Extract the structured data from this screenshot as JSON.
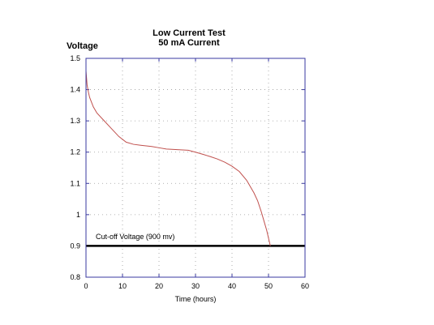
{
  "chart_data": {
    "type": "line",
    "title": "Low Current Test",
    "subtitle": "50 mA Current",
    "xlabel": "Time (hours)",
    "ylabel": "Voltage",
    "xlim": [
      0,
      60
    ],
    "ylim": [
      0.8,
      1.5
    ],
    "x_ticks": [
      "0",
      "10",
      "20",
      "30",
      "40",
      "50",
      "60"
    ],
    "y_ticks": [
      "0.8",
      "0.9",
      "1",
      "1.1",
      "1.2",
      "1.3",
      "1.4",
      "1.5"
    ],
    "grid": true,
    "series": [
      {
        "color": "#c0504d",
        "x": [
          0,
          0.3,
          0.7,
          1,
          2,
          3,
          5,
          7,
          9,
          11,
          13,
          15,
          18,
          20,
          22,
          25,
          28,
          30,
          32,
          34,
          36,
          38,
          40,
          42,
          44,
          45,
          46,
          47,
          48,
          49,
          49.5,
          50,
          50.3,
          50.5
        ],
        "y": [
          1.46,
          1.415,
          1.39,
          1.375,
          1.345,
          1.325,
          1.3,
          1.275,
          1.25,
          1.232,
          1.225,
          1.222,
          1.218,
          1.214,
          1.21,
          1.208,
          1.206,
          1.2,
          1.193,
          1.186,
          1.178,
          1.168,
          1.155,
          1.138,
          1.11,
          1.09,
          1.07,
          1.045,
          1.01,
          0.97,
          0.95,
          0.925,
          0.91,
          0.9
        ]
      }
    ],
    "reference_line": {
      "y": 0.9,
      "label": "Cut-off Voltage (900 mv)",
      "color": "#000000"
    },
    "colors": {
      "frame": "#3a3aa0",
      "grid": "#9a9a9a",
      "curve": "#c0504d"
    }
  }
}
